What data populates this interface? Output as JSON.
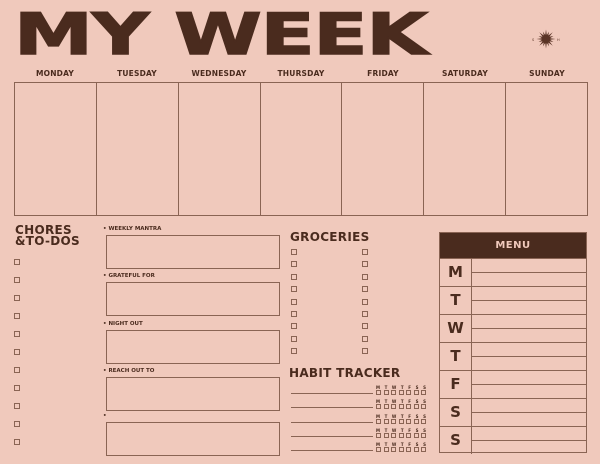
{
  "title": "MY WEEK",
  "logo": {
    "letters": [
      "S",
      "H"
    ],
    "icon": "sun-icon"
  },
  "days": [
    "MONDAY",
    "TUESDAY",
    "WEDNESDAY",
    "THURSDAY",
    "FRIDAY",
    "SATURDAY",
    "SUNDAY"
  ],
  "chores": {
    "title_line1": "CHORES",
    "title_line2": "&TO-DOS",
    "count": 11
  },
  "sections": [
    {
      "label": "WEEKLY MANTRA"
    },
    {
      "label": "GRATEFUL FOR"
    },
    {
      "label": "NIGHT OUT"
    },
    {
      "label": "REACH OUT TO"
    },
    {
      "label": ""
    }
  ],
  "groceries": {
    "title": "GROCERIES",
    "rows": 9,
    "columns": 2
  },
  "habit_tracker": {
    "title": "HABIT TRACKER",
    "rows": 5,
    "day_letters": [
      "M",
      "T",
      "W",
      "T",
      "F",
      "S",
      "S"
    ]
  },
  "menu": {
    "title": "MENU",
    "days": [
      "M",
      "T",
      "W",
      "T",
      "F",
      "S",
      "S"
    ]
  },
  "colors": {
    "background": "#f0c9bc",
    "ink": "#4a2b1e",
    "line": "#8a6454"
  }
}
